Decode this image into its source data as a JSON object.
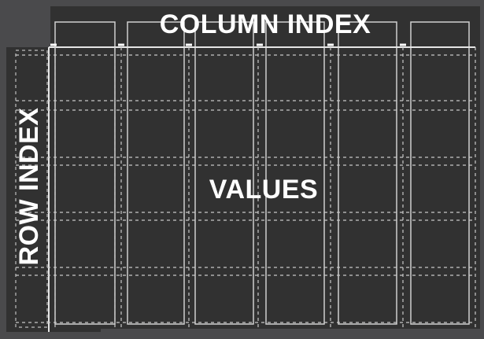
{
  "diagram": {
    "column_label": "COLUMN INDEX",
    "row_label": "ROW INDEX",
    "values_label": "VALUES"
  },
  "colors": {
    "background": "#4a4a4c",
    "panel": "#313131",
    "line": "#d9d9d9",
    "text": "#ffffff"
  }
}
